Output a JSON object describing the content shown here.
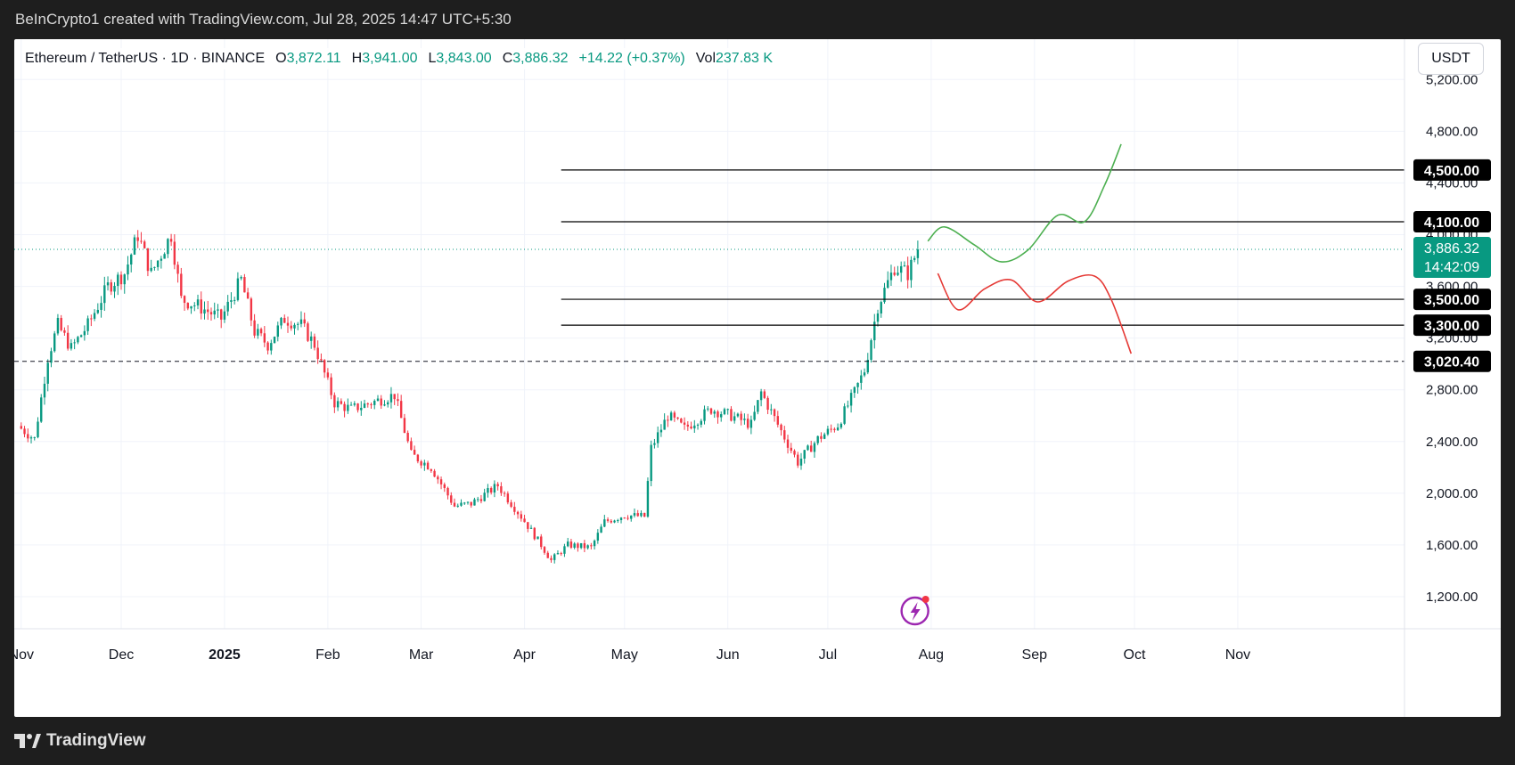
{
  "header": {
    "attribution": "BeInCrypto1 created with TradingView.com, Jul 28, 2025 14:47 UTC+5:30"
  },
  "legend": {
    "symbol": "Ethereum / TetherUS · 1D · BINANCE",
    "open_label": "O",
    "open": "3,872.11",
    "high_label": "H",
    "high": "3,941.00",
    "low_label": "L",
    "low": "3,843.00",
    "close_label": "C",
    "close": "3,886.32",
    "change": "+14.22 (+0.37%)",
    "vol_label": "Vol",
    "vol": "237.83 K"
  },
  "currency": "USDT",
  "footer": {
    "brand": "TradingView",
    "logo_icon": "tradingview-logo-icon",
    "flash_icon": "lightning-icon"
  },
  "colors": {
    "up": "#089981",
    "down": "#f23645",
    "bull": "#4caf50",
    "bear": "#e53935",
    "level": "#000000"
  },
  "chart_data": {
    "type": "candlestick",
    "price_axis_ticks": [
      "5,200.00",
      "4,800.00",
      "4,400.00",
      "4,000.00",
      "3,600.00",
      "3,200.00",
      "2,800.00",
      "2,400.00",
      "2,000.00",
      "1,600.00",
      "1,200.00"
    ],
    "price_axis_values": [
      5200,
      4800,
      4400,
      4000,
      3600,
      3200,
      2800,
      2400,
      2000,
      1600,
      1200
    ],
    "time_axis_labels": [
      {
        "label": "Nov",
        "date": "2024-11-01"
      },
      {
        "label": "Dec",
        "date": "2024-12-01"
      },
      {
        "label": "2025",
        "date": "2025-01-01",
        "bold": true
      },
      {
        "label": "Feb",
        "date": "2025-02-01"
      },
      {
        "label": "Mar",
        "date": "2025-03-01"
      },
      {
        "label": "Apr",
        "date": "2025-04-01"
      },
      {
        "label": "May",
        "date": "2025-05-01"
      },
      {
        "label": "Jun",
        "date": "2025-06-01"
      },
      {
        "label": "Jul",
        "date": "2025-07-01"
      },
      {
        "label": "Aug",
        "date": "2025-08-01"
      },
      {
        "label": "Sep",
        "date": "2025-09-01"
      },
      {
        "label": "Oct",
        "date": "2025-10-01"
      },
      {
        "label": "Nov",
        "date": "2025-11-01"
      }
    ],
    "price_path": [
      [
        "2024-10-31",
        2520
      ],
      [
        "2024-11-05",
        2420
      ],
      [
        "2024-11-09",
        3050
      ],
      [
        "2024-11-12",
        3300
      ],
      [
        "2024-11-16",
        3120
      ],
      [
        "2024-11-21",
        3300
      ],
      [
        "2024-11-27",
        3600
      ],
      [
        "2024-12-02",
        3700
      ],
      [
        "2024-12-06",
        4000
      ],
      [
        "2024-12-10",
        3700
      ],
      [
        "2024-12-16",
        4000
      ],
      [
        "2024-12-19",
        3500
      ],
      [
        "2024-12-24",
        3450
      ],
      [
        "2024-12-31",
        3350
      ],
      [
        "2025-01-06",
        3650
      ],
      [
        "2025-01-10",
        3250
      ],
      [
        "2025-01-14",
        3150
      ],
      [
        "2025-01-19",
        3350
      ],
      [
        "2025-01-24",
        3300
      ],
      [
        "2025-01-28",
        3150
      ],
      [
        "2025-02-03",
        2700
      ],
      [
        "2025-02-08",
        2650
      ],
      [
        "2025-02-14",
        2700
      ],
      [
        "2025-02-21",
        2760
      ],
      [
        "2025-02-26",
        2300
      ],
      [
        "2025-03-04",
        2200
      ],
      [
        "2025-03-11",
        1900
      ],
      [
        "2025-03-16",
        1920
      ],
      [
        "2025-03-24",
        2060
      ],
      [
        "2025-03-31",
        1820
      ],
      [
        "2025-04-06",
        1600
      ],
      [
        "2025-04-09",
        1480
      ],
      [
        "2025-04-14",
        1600
      ],
      [
        "2025-04-21",
        1580
      ],
      [
        "2025-04-25",
        1780
      ],
      [
        "2025-05-01",
        1830
      ],
      [
        "2025-05-07",
        1820
      ],
      [
        "2025-05-09",
        2350
      ],
      [
        "2025-05-14",
        2600
      ],
      [
        "2025-05-19",
        2500
      ],
      [
        "2025-05-27",
        2650
      ],
      [
        "2025-06-02",
        2600
      ],
      [
        "2025-06-08",
        2530
      ],
      [
        "2025-06-11",
        2780
      ],
      [
        "2025-06-16",
        2530
      ],
      [
        "2025-06-22",
        2240
      ],
      [
        "2025-06-28",
        2420
      ],
      [
        "2025-07-04",
        2530
      ],
      [
        "2025-07-09",
        2780
      ],
      [
        "2025-07-12",
        2950
      ],
      [
        "2025-07-16",
        3450
      ],
      [
        "2025-07-21",
        3750
      ],
      [
        "2025-07-25",
        3700
      ],
      [
        "2025-07-28",
        3886
      ]
    ],
    "horizontal_levels": [
      {
        "price": 4500,
        "label": "4,500.00"
      },
      {
        "price": 4100,
        "label": "4,100.00"
      },
      {
        "price": 3500,
        "label": "3,500.00"
      },
      {
        "price": 3300,
        "label": "3,300.00"
      }
    ],
    "dashed_level": {
      "price": 3020.4,
      "label": "3,020.40"
    },
    "last_price": {
      "price": 3886.32,
      "label": "3,886.32",
      "countdown": "14:42:09"
    },
    "bullish_projection": [
      [
        "2025-07-31",
        3950
      ],
      [
        "2025-08-05",
        4060
      ],
      [
        "2025-08-14",
        3920
      ],
      [
        "2025-08-22",
        3790
      ],
      [
        "2025-08-30",
        3880
      ],
      [
        "2025-09-08",
        4150
      ],
      [
        "2025-09-16",
        4100
      ],
      [
        "2025-09-22",
        4380
      ],
      [
        "2025-09-27",
        4700
      ]
    ],
    "bearish_projection": [
      [
        "2025-08-03",
        3700
      ],
      [
        "2025-08-09",
        3420
      ],
      [
        "2025-08-17",
        3580
      ],
      [
        "2025-08-25",
        3650
      ],
      [
        "2025-09-02",
        3480
      ],
      [
        "2025-09-11",
        3640
      ],
      [
        "2025-09-19",
        3680
      ],
      [
        "2025-09-24",
        3500
      ],
      [
        "2025-09-30",
        3080
      ]
    ]
  }
}
